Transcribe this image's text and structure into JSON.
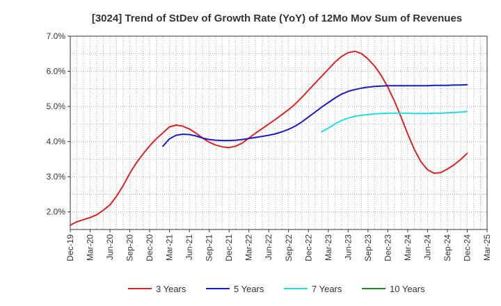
{
  "chart_data": {
    "type": "line",
    "title": "[3024]  Trend of StDev of Growth Rate (YoY) of 12Mo Mov Sum of Revenues",
    "xlabel": "",
    "ylabel": "",
    "ylim": [
      1.5,
      7.0
    ],
    "y_ticks": [
      2.0,
      3.0,
      4.0,
      5.0,
      6.0,
      7.0
    ],
    "y_tick_labels": [
      "2.0%",
      "3.0%",
      "4.0%",
      "5.0%",
      "6.0%",
      "7.0%"
    ],
    "x_range": [
      0,
      63
    ],
    "x_ticks": [
      0,
      3,
      6,
      9,
      12,
      15,
      18,
      21,
      24,
      27,
      30,
      33,
      36,
      39,
      42,
      45,
      48,
      51,
      54,
      57,
      60,
      63
    ],
    "x_tick_labels": [
      "Dec-19",
      "Mar-20",
      "Jun-20",
      "Sep-20",
      "Dec-20",
      "Mar-21",
      "Jun-21",
      "Sep-21",
      "Dec-21",
      "Mar-22",
      "Jun-22",
      "Sep-22",
      "Dec-22",
      "Mar-23",
      "Jun-23",
      "Sep-23",
      "Dec-23",
      "Mar-24",
      "Jun-24",
      "Sep-24",
      "Dec-24",
      "Mar-25"
    ],
    "grid": true,
    "legend_position": "bottom",
    "series": [
      {
        "name": "3 Years",
        "color": "#dd2222",
        "x": [
          0,
          1,
          2,
          3,
          4,
          5,
          6,
          7,
          8,
          9,
          10,
          11,
          12,
          13,
          14,
          15,
          16,
          17,
          18,
          19,
          20,
          21,
          22,
          23,
          24,
          25,
          26,
          27,
          28,
          29,
          30,
          31,
          32,
          33,
          34,
          35,
          36,
          37,
          38,
          39,
          40,
          41,
          42,
          43,
          44,
          45,
          46,
          47,
          48,
          49,
          50,
          51,
          52,
          53,
          54,
          55,
          56,
          57,
          58,
          59,
          60
        ],
        "values": [
          1.62,
          1.72,
          1.78,
          1.84,
          1.92,
          2.05,
          2.2,
          2.45,
          2.75,
          3.1,
          3.4,
          3.65,
          3.88,
          4.08,
          4.25,
          4.42,
          4.47,
          4.44,
          4.36,
          4.24,
          4.1,
          3.98,
          3.9,
          3.85,
          3.83,
          3.87,
          3.96,
          4.1,
          4.24,
          4.37,
          4.5,
          4.63,
          4.77,
          4.91,
          5.07,
          5.26,
          5.46,
          5.66,
          5.86,
          6.06,
          6.26,
          6.42,
          6.53,
          6.57,
          6.51,
          6.35,
          6.15,
          5.88,
          5.55,
          5.15,
          4.7,
          4.22,
          3.78,
          3.43,
          3.2,
          3.1,
          3.12,
          3.22,
          3.34,
          3.49,
          3.67
        ]
      },
      {
        "name": "5 Years",
        "color": "#1a1acc",
        "x": [
          14,
          15,
          16,
          17,
          18,
          19,
          20,
          21,
          22,
          23,
          24,
          25,
          26,
          27,
          28,
          29,
          30,
          31,
          32,
          33,
          34,
          35,
          36,
          37,
          38,
          39,
          40,
          41,
          42,
          43,
          44,
          45,
          46,
          47,
          48,
          49,
          50,
          51,
          52,
          53,
          54,
          55,
          56,
          57,
          58,
          59,
          60
        ],
        "values": [
          3.87,
          4.08,
          4.18,
          4.21,
          4.2,
          4.16,
          4.1,
          4.06,
          4.04,
          4.03,
          4.03,
          4.04,
          4.06,
          4.09,
          4.12,
          4.15,
          4.18,
          4.22,
          4.28,
          4.35,
          4.44,
          4.56,
          4.7,
          4.84,
          4.98,
          5.11,
          5.24,
          5.35,
          5.43,
          5.48,
          5.52,
          5.55,
          5.57,
          5.58,
          5.59,
          5.59,
          5.59,
          5.59,
          5.59,
          5.59,
          5.59,
          5.6,
          5.6,
          5.6,
          5.61,
          5.61,
          5.62
        ]
      },
      {
        "name": "7 Years",
        "color": "#22dddd",
        "x": [
          38,
          39,
          40,
          41,
          42,
          43,
          44,
          45,
          46,
          47,
          48,
          49,
          50,
          51,
          52,
          53,
          54,
          55,
          56,
          57,
          58,
          59,
          60
        ],
        "values": [
          4.28,
          4.38,
          4.5,
          4.6,
          4.67,
          4.72,
          4.75,
          4.77,
          4.79,
          4.8,
          4.81,
          4.81,
          4.81,
          4.81,
          4.8,
          4.8,
          4.8,
          4.81,
          4.81,
          4.82,
          4.83,
          4.84,
          4.86
        ]
      },
      {
        "name": "10 Years",
        "color": "#228822",
        "x": [],
        "values": []
      }
    ]
  }
}
